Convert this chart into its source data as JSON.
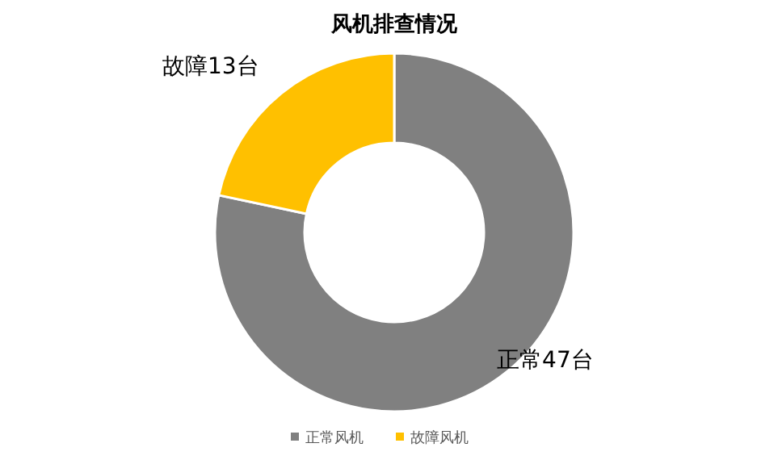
{
  "chart_data": {
    "type": "donut",
    "title": "风机排查情况",
    "categories": [
      "正常风机",
      "故障风机"
    ],
    "values": [
      47,
      13
    ],
    "colors": [
      "#808080",
      "#ffc000"
    ],
    "value_labels": [
      "正常47台",
      "故障13台"
    ],
    "legend": "bottom"
  }
}
